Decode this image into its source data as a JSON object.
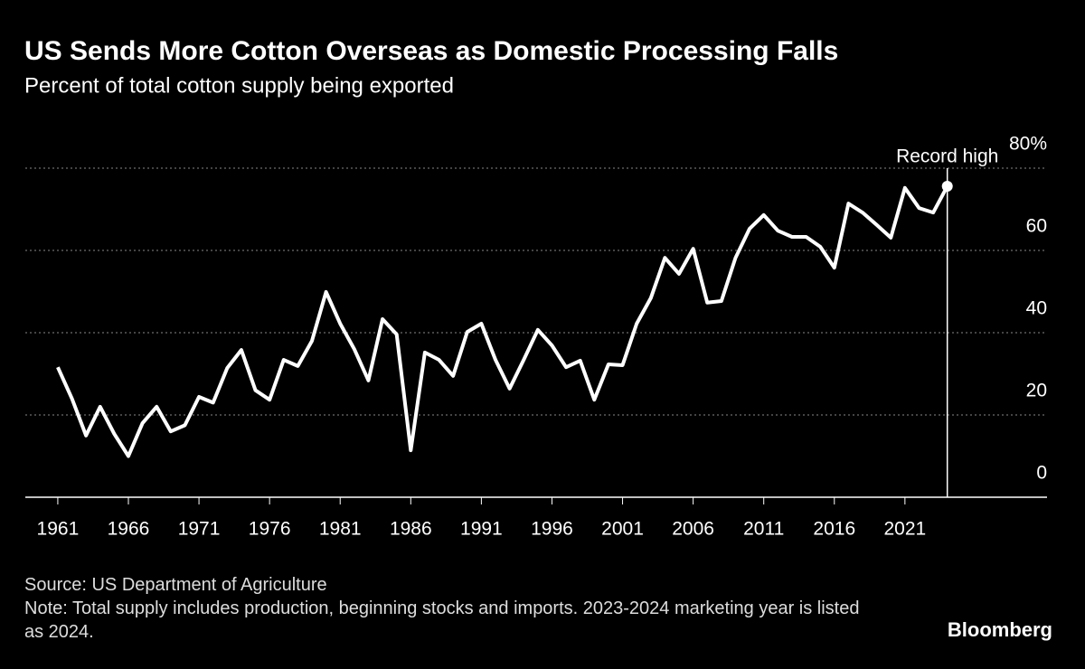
{
  "chart_data": {
    "type": "line",
    "title": "US Sends More Cotton Overseas as Domestic Processing Falls",
    "subtitle": "Percent of total cotton supply being exported",
    "annotation": "Record high",
    "x": [
      1961,
      1962,
      1963,
      1964,
      1965,
      1966,
      1967,
      1968,
      1969,
      1970,
      1971,
      1972,
      1973,
      1974,
      1975,
      1976,
      1977,
      1978,
      1979,
      1980,
      1981,
      1982,
      1983,
      1984,
      1985,
      1986,
      1987,
      1988,
      1989,
      1990,
      1991,
      1992,
      1993,
      1994,
      1995,
      1996,
      1997,
      1998,
      1999,
      2000,
      2001,
      2002,
      2003,
      2004,
      2005,
      2006,
      2007,
      2008,
      2009,
      2010,
      2011,
      2012,
      2013,
      2014,
      2015,
      2016,
      2017,
      2018,
      2019,
      2020,
      2021,
      2022,
      2023,
      2024
    ],
    "values": [
      31.6,
      24,
      15,
      22,
      15.4,
      10,
      18,
      22,
      16,
      17.5,
      24.4,
      23,
      31.4,
      35.8,
      26,
      23.7,
      33.4,
      31.9,
      38,
      49.9,
      42.2,
      36,
      28.4,
      43.3,
      39.6,
      11.4,
      35.2,
      33.4,
      29.5,
      40.2,
      42.2,
      33.4,
      26.4,
      33.4,
      40.7,
      36.9,
      31.6,
      33.2,
      23.7,
      32.3,
      32.1,
      42.2,
      48.4,
      58.2,
      54.3,
      60.4,
      47.3,
      47.7,
      58.2,
      65.3,
      68.6,
      64.8,
      63.3,
      63.3,
      60.9,
      55.8,
      71.4,
      69.2,
      66.2,
      63.1,
      75.2,
      70.3,
      69.2,
      75.6
    ],
    "color": "#ffffff",
    "xlim": [
      1958.7,
      2025.3
    ],
    "xticks": [
      1961,
      1966,
      1971,
      1976,
      1981,
      1986,
      1991,
      1996,
      2001,
      2006,
      2011,
      2016,
      2021
    ],
    "ylim": [
      0,
      80
    ],
    "yticks": [
      0,
      20,
      40,
      {
        "value": 80,
        "label": "80%"
      },
      60
    ],
    "grid": true,
    "source": "Source: US Department of Agriculture",
    "note": "Note: Total supply includes production, beginning stocks and imports. 2023-2024 marketing year is listed as 2024.",
    "brand": "Bloomberg"
  }
}
